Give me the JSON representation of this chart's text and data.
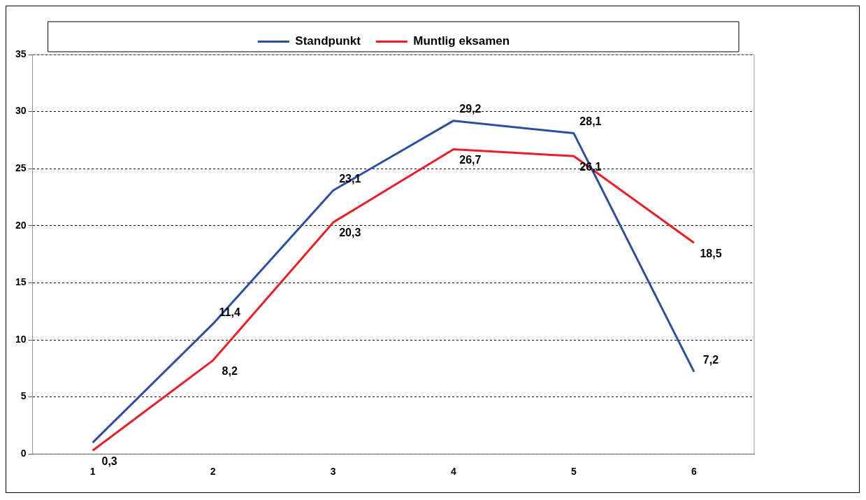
{
  "chart_data": {
    "type": "line",
    "categories": [
      "1",
      "2",
      "3",
      "4",
      "5",
      "6"
    ],
    "series": [
      {
        "name": "Standpunkt",
        "color": "#2b4fa3",
        "values": [
          1.0,
          11.4,
          23.1,
          29.2,
          28.1,
          7.2
        ],
        "value_labels": [
          null,
          "11,4",
          "23,1",
          "29,2",
          "28,1",
          "7,2"
        ]
      },
      {
        "name": "Muntlig eksamen",
        "color": "#ee1c25",
        "values": [
          0.3,
          8.2,
          20.3,
          26.7,
          26.1,
          18.5
        ],
        "value_labels": [
          "0,3",
          "8,2",
          "20,3",
          "26,7",
          "26,1",
          "18,5"
        ]
      }
    ],
    "ylim": [
      0,
      35
    ],
    "yticks": [
      0,
      5,
      10,
      15,
      20,
      25,
      30,
      35
    ],
    "grid": "y",
    "legend": "top",
    "marker": "none",
    "line_style": "solid"
  }
}
